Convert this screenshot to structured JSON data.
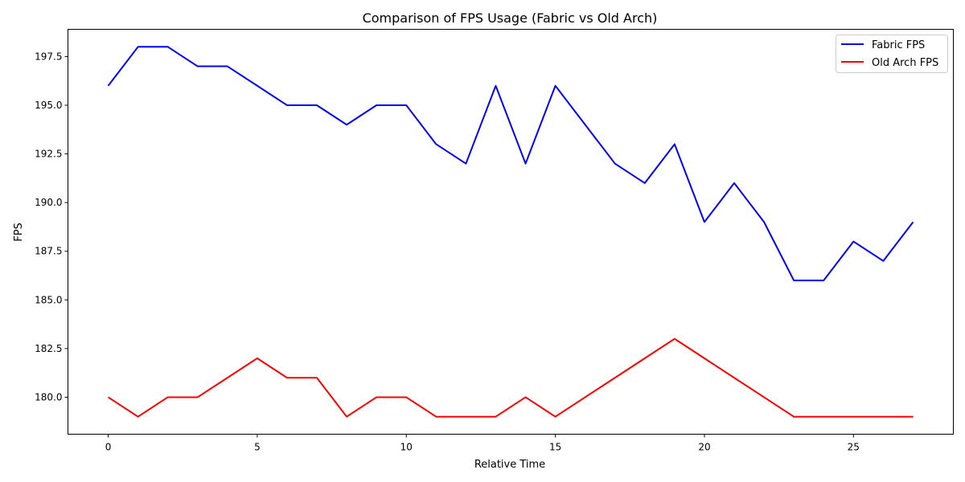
{
  "chart_data": {
    "type": "line",
    "title": "Comparison of FPS Usage (Fabric vs Old Arch)",
    "xlabel": "Relative Time",
    "ylabel": "FPS",
    "x": [
      0,
      1,
      2,
      3,
      4,
      5,
      6,
      7,
      8,
      9,
      10,
      11,
      12,
      13,
      14,
      15,
      16,
      17,
      18,
      19,
      20,
      21,
      22,
      23,
      24,
      25,
      26,
      27
    ],
    "xlim": [
      -1.35,
      28.35
    ],
    "ylim": [
      178.1,
      198.9
    ],
    "xticks": [
      0,
      5,
      10,
      15,
      20,
      25
    ],
    "yticks": [
      180.0,
      182.5,
      185.0,
      187.5,
      190.0,
      192.5,
      195.0,
      197.5
    ],
    "ytick_labels": [
      "180.0",
      "182.5",
      "185.0",
      "187.5",
      "190.0",
      "192.5",
      "195.0",
      "197.5"
    ],
    "xtick_labels": [
      "0",
      "5",
      "10",
      "15",
      "20",
      "25"
    ],
    "grid": false,
    "legend_position": "top-right",
    "series": [
      {
        "name": "Fabric FPS",
        "color": "#0000ff",
        "values": [
          196,
          198,
          198,
          197,
          197,
          196,
          195,
          195,
          194,
          195,
          195,
          193,
          192,
          196,
          192,
          196,
          194,
          192,
          191,
          193,
          189,
          191,
          189,
          186,
          186,
          188,
          187,
          189
        ]
      },
      {
        "name": "Old Arch FPS",
        "color": "#ff0000",
        "values": [
          180,
          179,
          180,
          180,
          181,
          182,
          181,
          181,
          179,
          180,
          180,
          179,
          179,
          179,
          180,
          179,
          180,
          181,
          182,
          183,
          182,
          181,
          180,
          179,
          179,
          179,
          179,
          179
        ]
      }
    ]
  }
}
